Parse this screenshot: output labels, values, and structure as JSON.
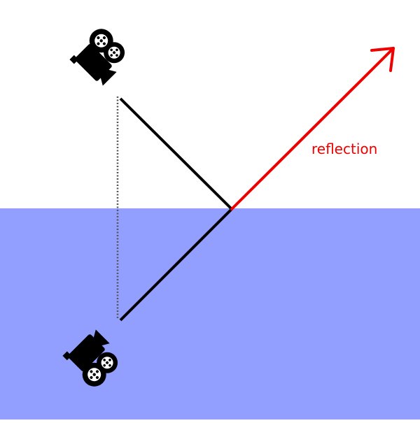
{
  "diagram": {
    "reflection_label": "reflection",
    "colors": {
      "sky": "#ffffff",
      "water": "#939ffe",
      "ray": "#000000",
      "reflection": "#ee0000",
      "guide": "#555555",
      "camera": "#000000"
    },
    "elements": {
      "real_camera": "movie-camera-icon",
      "mirrored_camera": "movie-camera-icon"
    }
  }
}
